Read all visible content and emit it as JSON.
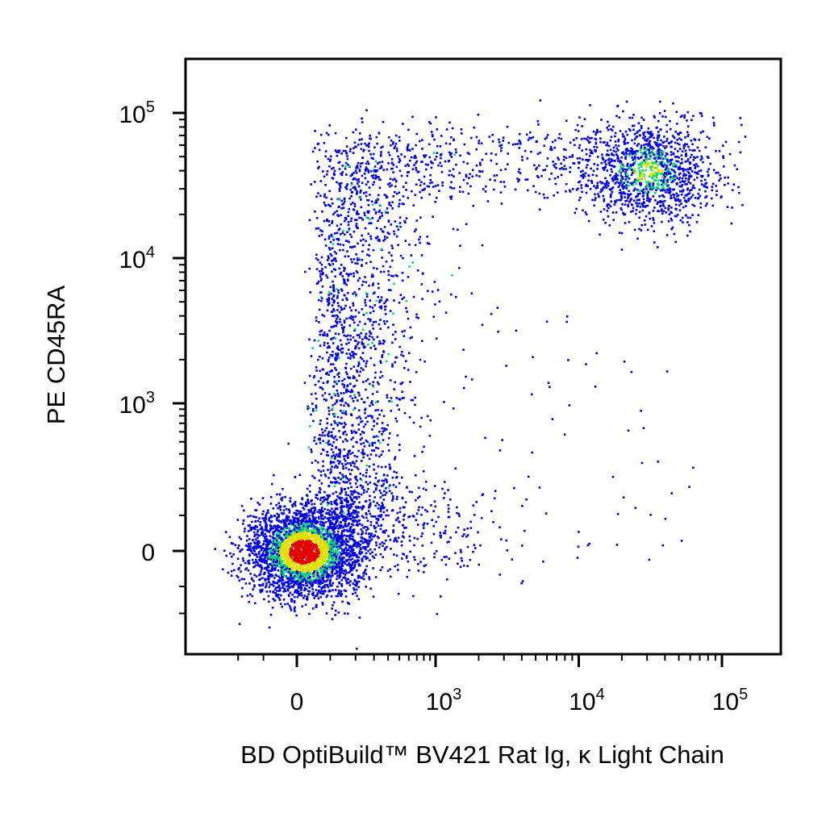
{
  "chart_data": {
    "type": "scatter",
    "title": "",
    "xlabel": "BD OptiBuild™ BV421 Rat Ig, κ Light Chain",
    "ylabel": "PE CD45RA",
    "x_scale": "biexponential",
    "y_scale": "biexponential",
    "xlim": [
      -300,
      200000
    ],
    "ylim": [
      -300,
      230000
    ],
    "x_ticks": [
      {
        "value": 0,
        "base": "0",
        "exp": ""
      },
      {
        "value": 1000,
        "base": "10",
        "exp": "3"
      },
      {
        "value": 10000,
        "base": "10",
        "exp": "4"
      },
      {
        "value": 100000,
        "base": "10",
        "exp": "5"
      }
    ],
    "y_ticks": [
      {
        "value": 0,
        "base": "0",
        "exp": ""
      },
      {
        "value": 1000,
        "base": "10",
        "exp": "3"
      },
      {
        "value": 10000,
        "base": "10",
        "exp": "4"
      },
      {
        "value": 100000,
        "base": "10",
        "exp": "5"
      }
    ],
    "coloring": "density (blue low, green, yellow, red high)",
    "colors": {
      "low": "#0000e0",
      "mid": "#00e070",
      "high_mid": "#e0e000",
      "high": "#e00000"
    },
    "populations": [
      {
        "x_center": 0,
        "y_center": 0,
        "description": "double-negative cluster",
        "relative_density": "highest"
      },
      {
        "x_center": 30000,
        "y_center": 40000,
        "description": "double-positive cluster",
        "relative_density": "medium"
      },
      {
        "x_center": 100,
        "y_center": 2000,
        "description": "CD45RA+ vertical smear",
        "relative_density": "low"
      }
    ],
    "grid": false,
    "legend": "none"
  }
}
